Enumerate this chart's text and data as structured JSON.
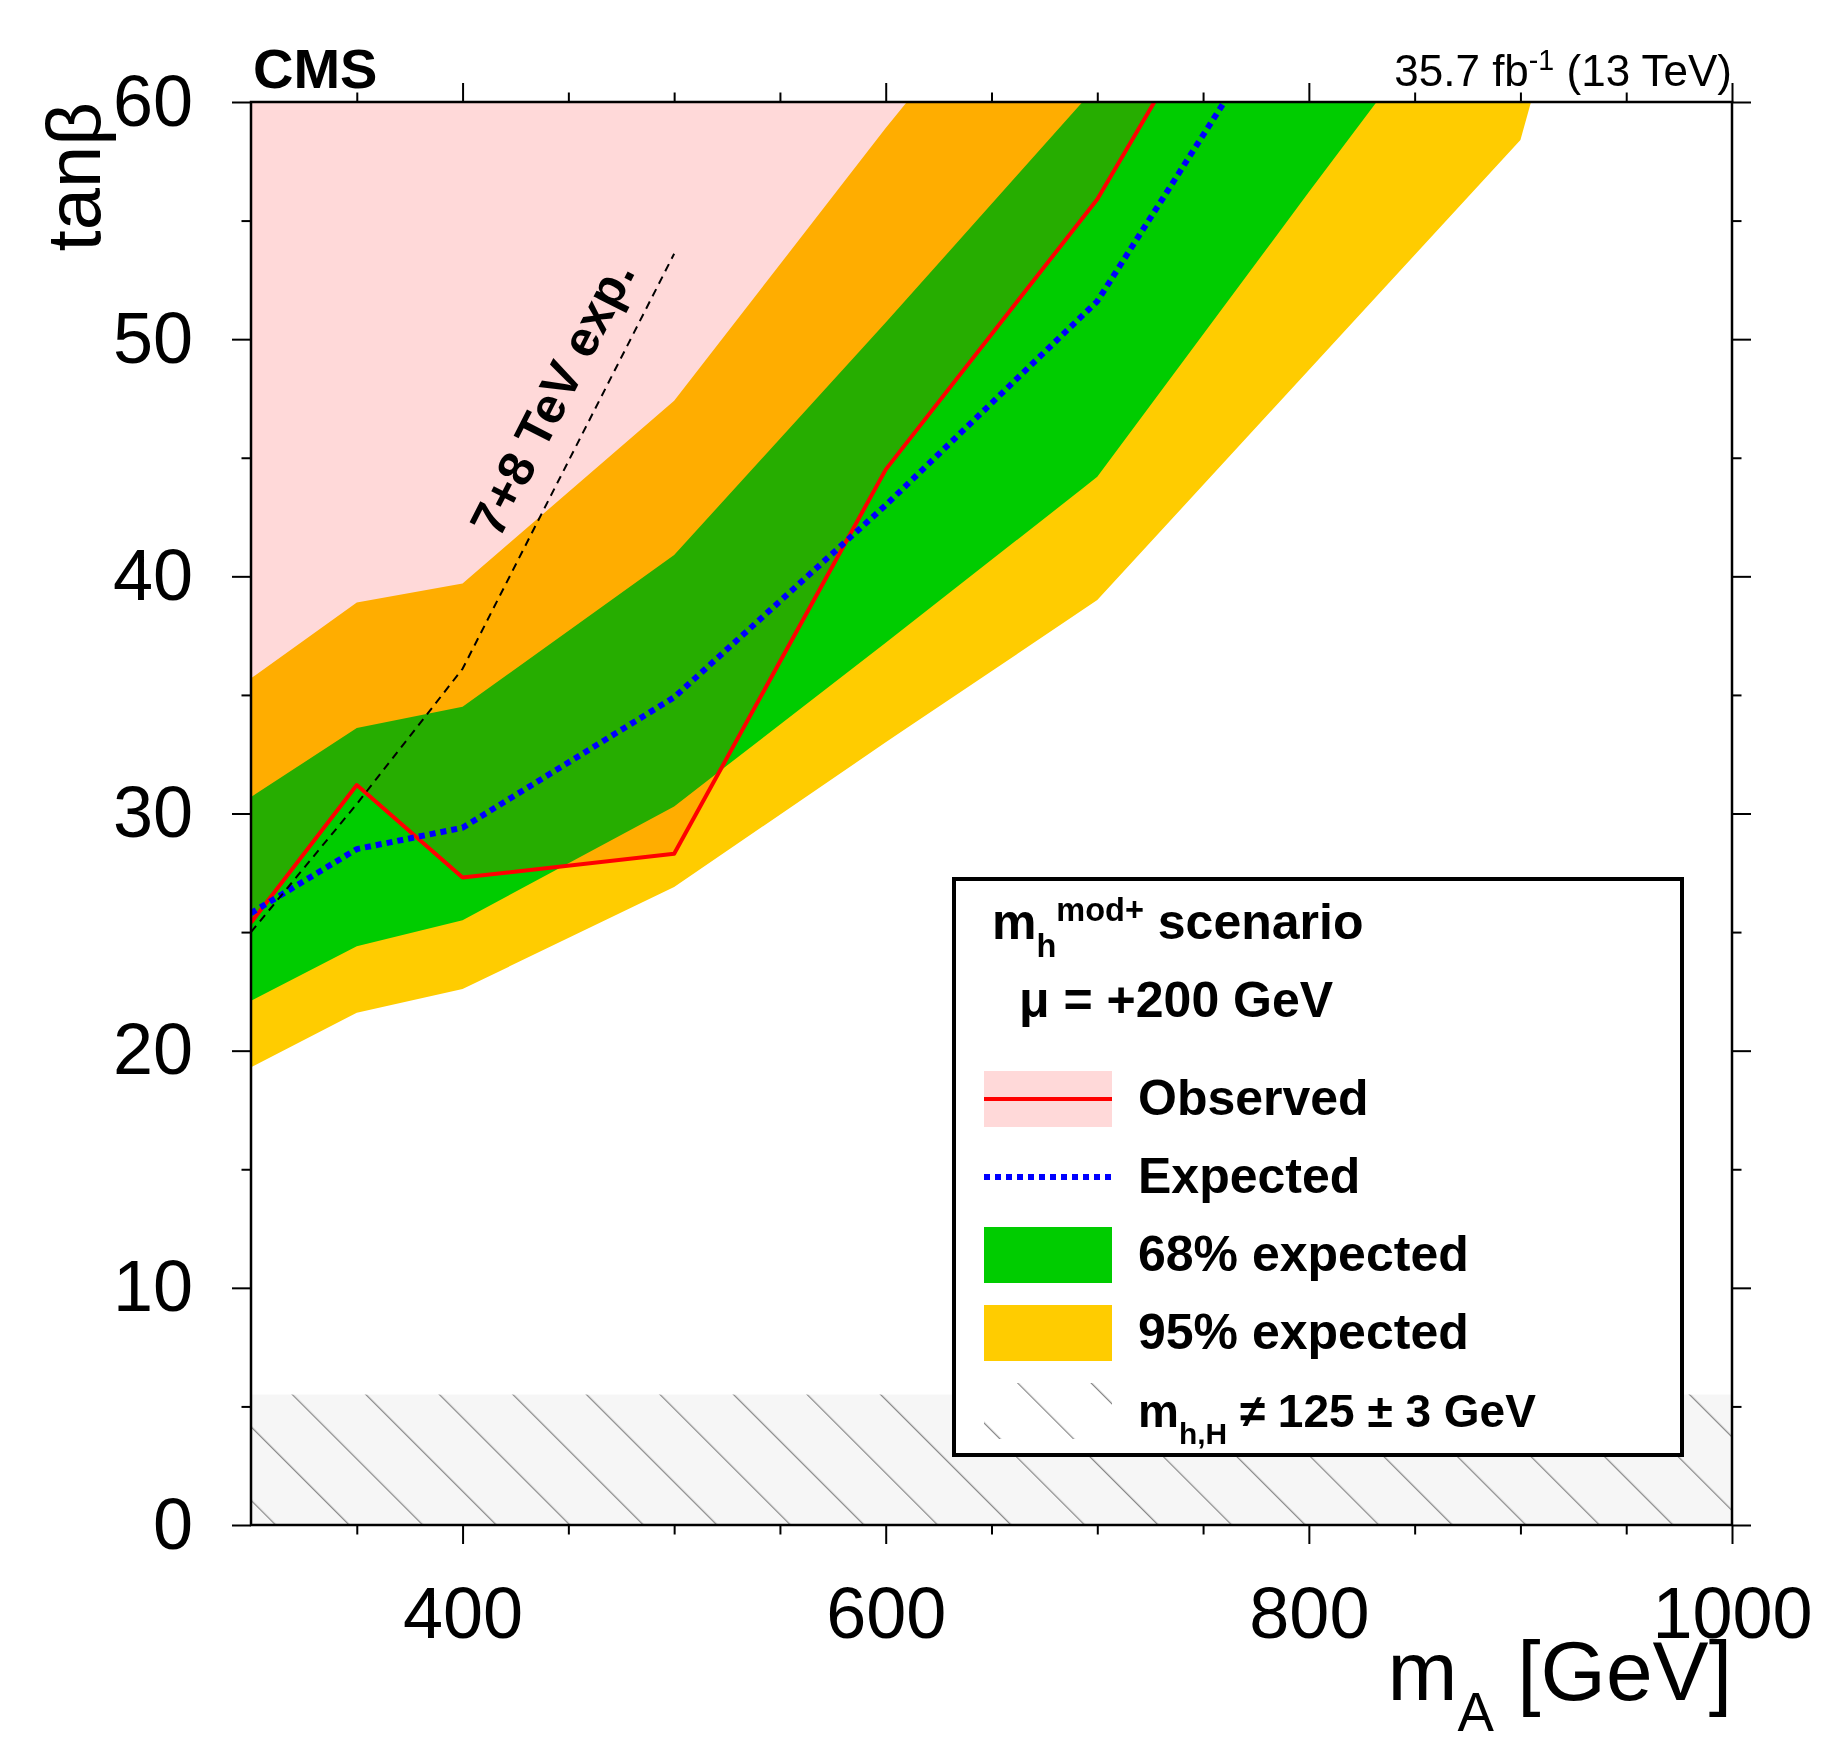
{
  "chart_data": {
    "type": "line",
    "title": "CMS",
    "subtitle": "35.7 fb$^{-1}$ (13 TeV)",
    "xlabel": "m$_{A}$ [GeV]",
    "ylabel": "tanβ",
    "xlim": [
      300,
      1000
    ],
    "ylim": [
      0,
      60
    ],
    "xticks": [
      {
        "value": 350,
        "label": null
      },
      {
        "value": 400,
        "label": "400"
      },
      {
        "value": 450,
        "label": null
      },
      {
        "value": 500,
        "label": null
      },
      {
        "value": 550,
        "label": null
      },
      {
        "value": 600,
        "label": "600"
      },
      {
        "value": 650,
        "label": null
      },
      {
        "value": 700,
        "label": null
      },
      {
        "value": 750,
        "label": null
      },
      {
        "value": 800,
        "label": "800"
      },
      {
        "value": 850,
        "label": null
      },
      {
        "value": 900,
        "label": null
      },
      {
        "value": 950,
        "label": null
      },
      {
        "value": 1000,
        "label": "1000"
      }
    ],
    "yticks": [
      0,
      {
        "value": 5,
        "label": null
      },
      10,
      {
        "value": 15,
        "label": null
      },
      20,
      {
        "value": 25,
        "label": null
      },
      30,
      {
        "value": 35,
        "label": null
      },
      40,
      {
        "value": 45,
        "label": null
      },
      50,
      {
        "value": 55,
        "label": null
      },
      60
    ],
    "series": [
      {
        "name": "Observed",
        "color": "#ff0000",
        "line_style": "solid",
        "x": [
          300,
          350,
          400,
          500,
          600,
          700,
          727
        ],
        "values": [
          25.4,
          31.2,
          27.3,
          28.3,
          44.5,
          55.9,
          60
        ],
        "lower": [
          25.4,
          31.2,
          27.3,
          28.3,
          44.5,
          55.9,
          60
        ],
        "upper": [
          60,
          60,
          60,
          60,
          60,
          60,
          60
        ]
      },
      {
        "name": "Expected",
        "color": "#0000ff",
        "line_style": "dotted",
        "x": [
          300,
          350,
          400,
          500,
          600,
          700,
          760
        ],
        "values": [
          25.8,
          28.5,
          29.4,
          34.9,
          43,
          51.6,
          60
        ]
      },
      {
        "name": "68% expected",
        "type": "area",
        "color": "#00cc00",
        "x": [
          300,
          350,
          400,
          500,
          600,
          693,
          700,
          800,
          832
        ],
        "values": [
          null,
          null,
          null,
          null,
          null,
          null,
          null,
          null,
          null
        ],
        "lower": [
          22.1,
          24.4,
          25.5,
          30.3,
          37.2,
          43.7,
          44.2,
          56.2,
          60
        ],
        "upper": [
          30.7,
          33.6,
          34.5,
          40.9,
          50.7,
          60,
          60,
          60,
          60
        ]
      },
      {
        "name": "95% expected",
        "type": "area",
        "color": "#ffcc00",
        "x": [
          300,
          350,
          400,
          500,
          600,
          610,
          700,
          800,
          900,
          905
        ],
        "values": [
          null,
          null,
          null,
          null,
          null,
          null,
          null,
          null,
          null,
          null
        ],
        "lower": [
          19.3,
          21.6,
          22.6,
          26.9,
          33,
          33.6,
          39,
          48.7,
          58.4,
          60
        ],
        "upper": [
          35.7,
          38.9,
          39.7,
          47.4,
          58.9,
          60,
          60,
          60,
          60,
          60
        ]
      },
      {
        "color": "#000000",
        "line_style": "dashed",
        "x": [
          300,
          350,
          400,
          500
        ],
        "values": [
          25,
          30.4,
          36.1,
          53.6
        ]
      }
    ],
    "bands": [
      {
        "axis": "y",
        "from": 0,
        "to": 5.5,
        "label": "m$_{h,H}$ ≠ 125 ± 3 GeV",
        "color": "#888888"
      }
    ],
    "legend": "bottom right",
    "legend_title": "m$_{h}$$^{mod+}$ scenario",
    "annotations": [
      "μ = +200 GeV",
      {
        "text": "7+8 TeV exp.",
        "x": 460,
        "y": 46.6
      }
    ]
  }
}
